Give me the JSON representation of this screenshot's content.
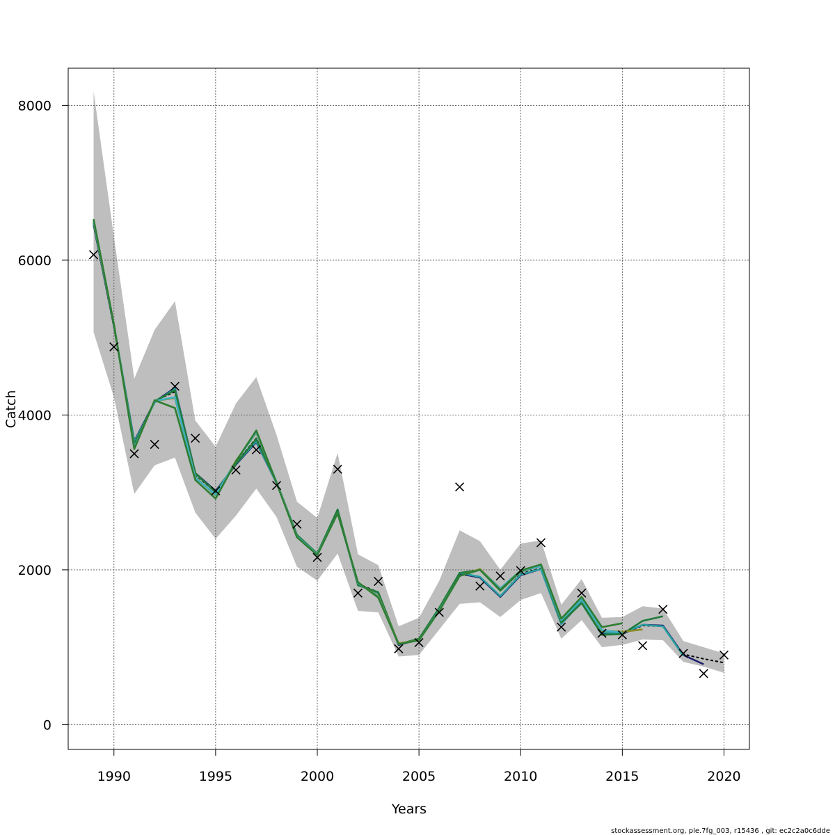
{
  "chart_data": {
    "type": "line",
    "xlabel": "Years",
    "ylabel": "Catch",
    "xlim": [
      1987.75,
      2021.25
    ],
    "ylim": [
      -320,
      8480
    ],
    "x_ticks": [
      1990,
      1995,
      2000,
      2005,
      2010,
      2015,
      2020
    ],
    "y_ticks": [
      0,
      2000,
      4000,
      6000,
      8000
    ],
    "grid": true,
    "colors": {
      "band": "#bebebe",
      "dashed_line": "#000000",
      "observations": "#000000",
      "retro_lines": [
        "#2a8fd6",
        "#1f1f6e",
        "#28a0a0",
        "#1f7a3a",
        "#8a8a20",
        "#3fb0c0",
        "#2e7d32"
      ]
    },
    "band": {
      "x": [
        1989,
        1990,
        1991,
        1992,
        1993,
        1994,
        1995,
        1996,
        1997,
        1998,
        1999,
        2000,
        2001,
        2002,
        2003,
        2004,
        2005,
        2006,
        2007,
        2008,
        2009,
        2010,
        2011,
        2012,
        2013,
        2014,
        2015,
        2016,
        2017,
        2018,
        2019,
        2020
      ],
      "upper": [
        8180,
        6300,
        4470,
        5100,
        5470,
        3930,
        3590,
        4150,
        4490,
        3740,
        2880,
        2670,
        3510,
        2200,
        2060,
        1270,
        1380,
        1860,
        2510,
        2370,
        2000,
        2340,
        2380,
        1550,
        1880,
        1380,
        1390,
        1530,
        1500,
        1080,
        1000,
        920
      ],
      "lower": [
        5070,
        4230,
        2980,
        3350,
        3450,
        2740,
        2400,
        2700,
        3050,
        2680,
        2040,
        1860,
        2210,
        1470,
        1450,
        880,
        900,
        1230,
        1560,
        1580,
        1390,
        1610,
        1700,
        1110,
        1350,
        1000,
        1030,
        1100,
        1090,
        810,
        750,
        670
      ]
    },
    "observations": {
      "x": [
        1989,
        1990,
        1991,
        1992,
        1993,
        1994,
        1995,
        1996,
        1997,
        1998,
        1999,
        2000,
        2001,
        2002,
        2003,
        2004,
        2005,
        2006,
        2007,
        2008,
        2009,
        2010,
        2011,
        2012,
        2013,
        2014,
        2015,
        2016,
        2017,
        2018,
        2019,
        2020
      ],
      "y": [
        6070,
        4880,
        3500,
        3620,
        4370,
        3700,
        3020,
        3290,
        3550,
        3090,
        2590,
        2160,
        3300,
        1700,
        1850,
        980,
        1060,
        1450,
        3070,
        1790,
        1920,
        1990,
        2350,
        1260,
        1700,
        1180,
        1160,
        1020,
        1490,
        920,
        660,
        900
      ]
    },
    "series": [
      {
        "style": "dashed",
        "x": [
          1989,
          1990,
          1991,
          1992,
          1993,
          1994,
          1995,
          1996,
          1997,
          1998,
          1999,
          2000,
          2001,
          2002,
          2003,
          2004,
          2005,
          2006,
          2007,
          2008,
          2009,
          2010,
          2011,
          2012,
          2013,
          2014,
          2015,
          2016,
          2017,
          2018,
          2019,
          2020
        ],
        "y": [
          6450,
          5130,
          3640,
          4180,
          4300,
          3230,
          3000,
          3380,
          3700,
          3140,
          2450,
          2200,
          2750,
          1820,
          1710,
          1040,
          1110,
          1510,
          1940,
          1910,
          1660,
          1950,
          2020,
          1310,
          1600,
          1190,
          1170,
          1280,
          1270,
          910,
          850,
          800
        ]
      },
      {
        "x": [
          1989,
          1990,
          1991,
          1992,
          1993,
          1994,
          1995,
          1996,
          1997,
          1998,
          1999,
          2000,
          2001,
          2002,
          2003,
          2004,
          2005,
          2006,
          2007,
          2008,
          2009,
          2010,
          2011,
          2012,
          2013,
          2014,
          2015,
          2016,
          2017,
          2018,
          2019
        ],
        "y": [
          6460,
          5150,
          3660,
          4170,
          4350,
          3250,
          3020,
          3360,
          3650,
          3120,
          2440,
          2200,
          2750,
          1810,
          1700,
          1030,
          1100,
          1500,
          1950,
          1900,
          1650,
          1930,
          2010,
          1300,
          1590,
          1180,
          1170,
          1290,
          1280,
          900,
          780
        ]
      },
      {
        "x": [
          1989,
          1990,
          1991,
          1992,
          1993,
          1994,
          1995,
          1996,
          1997,
          1998,
          1999,
          2000,
          2001,
          2002,
          2003,
          2004,
          2005,
          2006,
          2007,
          2008,
          2009,
          2010,
          2011,
          2012,
          2013,
          2014,
          2015,
          2016,
          2017,
          2018
        ],
        "y": [
          6480,
          5160,
          3650,
          4160,
          4340,
          3240,
          3010,
          3370,
          3660,
          3120,
          2450,
          2210,
          2760,
          1810,
          1700,
          1040,
          1100,
          1500,
          1960,
          1910,
          1660,
          1940,
          2010,
          1300,
          1600,
          1190,
          1180,
          1290,
          1270,
          890
        ]
      },
      {
        "x": [
          1989,
          1990,
          1991,
          1992,
          1993,
          1994,
          1995,
          1996,
          1997,
          1998,
          1999,
          2000,
          2001,
          2002,
          2003,
          2004,
          2005,
          2006,
          2007,
          2008,
          2009,
          2010,
          2011,
          2012,
          2013,
          2014,
          2015,
          2016,
          2017
        ],
        "y": [
          6490,
          5160,
          3620,
          4180,
          4320,
          3250,
          3000,
          3370,
          3690,
          3130,
          2450,
          2210,
          2780,
          1800,
          1710,
          1040,
          1110,
          1510,
          1960,
          2000,
          1730,
          1980,
          2050,
          1320,
          1570,
          1160,
          1170,
          1340,
          1400
        ]
      },
      {
        "x": [
          1989,
          1990,
          1991,
          1992,
          1993,
          1994,
          1995,
          1996,
          1997,
          1998,
          1999,
          2000,
          2001,
          2002,
          2003,
          2004,
          2005,
          2006,
          2007,
          2008,
          2009,
          2010,
          2011,
          2012,
          2013,
          2014,
          2015,
          2016
        ],
        "y": [
          6500,
          5170,
          3580,
          4180,
          4220,
          3200,
          2960,
          3410,
          3770,
          3130,
          2430,
          2200,
          2730,
          1830,
          1660,
          1050,
          1090,
          1480,
          1920,
          2010,
          1760,
          1990,
          2060,
          1350,
          1620,
          1210,
          1200,
          1230
        ]
      },
      {
        "x": [
          1989,
          1990,
          1991,
          1992,
          1993,
          1994,
          1995,
          1996,
          1997,
          1998,
          1999,
          2000,
          2001,
          2002,
          2003,
          2004,
          2005,
          2006,
          2007,
          2008,
          2009,
          2010,
          2011,
          2012,
          2013,
          2014,
          2015
        ],
        "y": [
          6510,
          5170,
          3580,
          4180,
          4230,
          3190,
          2970,
          3400,
          3780,
          3130,
          2430,
          2200,
          2730,
          1830,
          1650,
          1040,
          1090,
          1480,
          1920,
          2000,
          1760,
          1990,
          2050,
          1350,
          1620,
          1220,
          1190
        ]
      },
      {
        "x": [
          1989,
          1990,
          1991,
          1992,
          1993,
          1994,
          1995,
          1996,
          1997,
          1998,
          1999,
          2000,
          2001,
          2002,
          2003,
          2004,
          2005,
          2006,
          2007,
          2008,
          2009,
          2010,
          2011,
          2012,
          2013,
          2014,
          2015
        ],
        "y": [
          6530,
          5170,
          3560,
          4190,
          4090,
          3160,
          2920,
          3400,
          3800,
          3120,
          2420,
          2190,
          2730,
          1840,
          1640,
          1040,
          1090,
          1470,
          1920,
          2000,
          1740,
          1990,
          2070,
          1370,
          1650,
          1260,
          1310
        ]
      }
    ]
  },
  "footer": "stockassessment.org, ple.7fg_003, r15436 , git: ec2c2a0c6dde"
}
